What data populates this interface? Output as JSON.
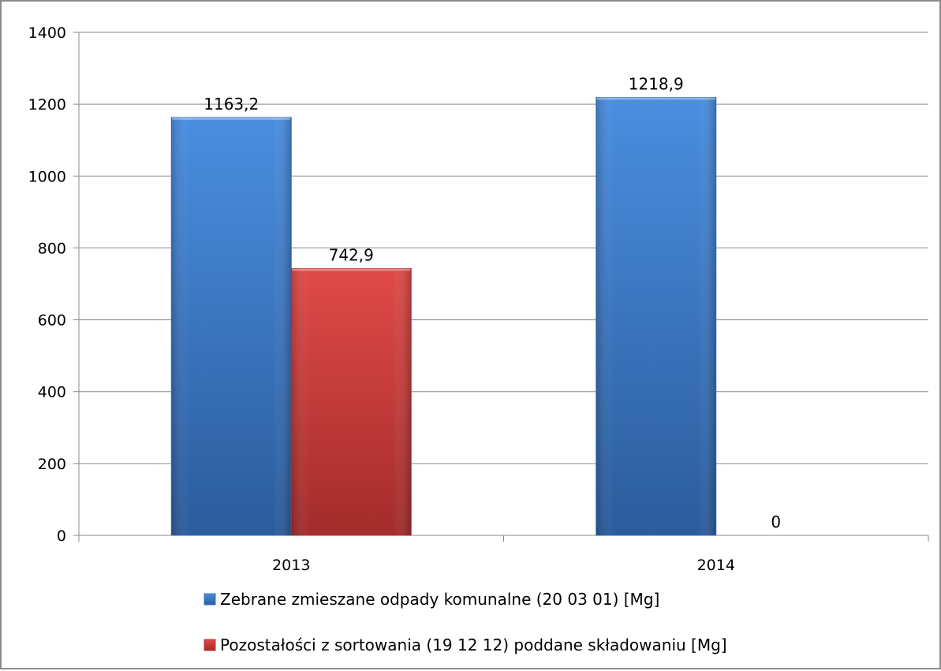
{
  "chart_data": {
    "type": "bar",
    "categories": [
      "2013",
      "2014"
    ],
    "series": [
      {
        "name": "Zebrane zmieszane odpady komunalne (20 03 01) [Mg]",
        "values": [
          1163.2,
          1218.9
        ],
        "data_labels": [
          "1163,2",
          "1218,9"
        ],
        "color": "#3b74c4"
      },
      {
        "name": "Pozostałości z sortowania (19 12 12) poddane składowaniu [Mg]",
        "values": [
          742.9,
          0
        ],
        "data_labels": [
          "742,9",
          "0"
        ],
        "color": "#c0393a"
      }
    ],
    "yticks": [
      "0",
      "200",
      "400",
      "600",
      "800",
      "1000",
      "1200",
      "1400"
    ],
    "ylim": [
      0,
      1400
    ],
    "grid": true,
    "legend_position": "bottom"
  }
}
